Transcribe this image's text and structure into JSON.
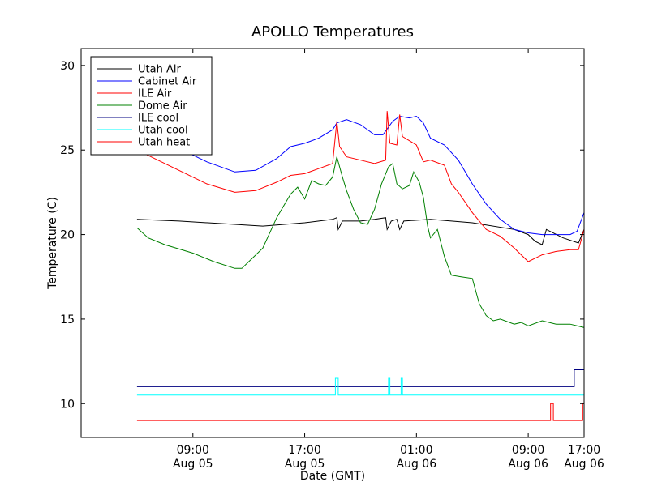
{
  "chart_data": {
    "type": "line",
    "title": "APOLLO Temperatures",
    "xlabel": "Date (GMT)",
    "ylabel": "Temperature (C)",
    "xlim": [
      -4,
      32
    ],
    "ylim": [
      8,
      31
    ],
    "x_unit": "hours since 2024-08-05 05:00 (approx)",
    "yticks": [
      10,
      15,
      20,
      25,
      30
    ],
    "xticks": [
      {
        "x": 4,
        "line1": "09:00",
        "line2": "Aug 05"
      },
      {
        "x": 12,
        "line1": "17:00",
        "line2": "Aug 05"
      },
      {
        "x": 20,
        "line1": "01:00",
        "line2": "Aug 06"
      },
      {
        "x": 28,
        "line1": "09:00",
        "line2": "Aug 06"
      },
      {
        "x": 36,
        "line1": "17:00",
        "line2": "Aug 06"
      }
    ],
    "legend_position": "top-left",
    "series": [
      {
        "name": "Utah Air",
        "color": "#000000",
        "step": false,
        "points": [
          [
            0,
            20.9
          ],
          [
            3,
            20.8
          ],
          [
            7,
            20.6
          ],
          [
            9,
            20.5
          ],
          [
            12,
            20.7
          ],
          [
            14,
            20.9
          ],
          [
            14.3,
            21.0
          ],
          [
            14.4,
            20.3
          ],
          [
            14.7,
            20.8
          ],
          [
            16,
            20.8
          ],
          [
            17,
            20.9
          ],
          [
            17.8,
            21.0
          ],
          [
            17.9,
            20.3
          ],
          [
            18.2,
            20.8
          ],
          [
            18.6,
            20.9
          ],
          [
            18.8,
            20.3
          ],
          [
            19.1,
            20.8
          ],
          [
            21,
            20.9
          ],
          [
            24,
            20.7
          ],
          [
            27,
            20.3
          ],
          [
            28,
            20.0
          ],
          [
            28.5,
            19.6
          ],
          [
            29,
            19.4
          ],
          [
            29.3,
            20.3
          ],
          [
            30.5,
            19.8
          ],
          [
            31.6,
            19.5
          ],
          [
            32,
            20.3
          ],
          [
            32.5,
            19.9
          ],
          [
            33,
            19.7
          ],
          [
            36,
            19.7
          ]
        ]
      },
      {
        "name": "Cabinet Air",
        "color": "#0000ff",
        "step": false,
        "points": [
          [
            0,
            26.6
          ],
          [
            2,
            25.5
          ],
          [
            5,
            24.3
          ],
          [
            7,
            23.7
          ],
          [
            8.5,
            23.8
          ],
          [
            10,
            24.5
          ],
          [
            11,
            25.2
          ],
          [
            12,
            25.4
          ],
          [
            13,
            25.7
          ],
          [
            14,
            26.2
          ],
          [
            14.3,
            26.6
          ],
          [
            15,
            26.8
          ],
          [
            16,
            26.5
          ],
          [
            17,
            25.9
          ],
          [
            17.6,
            25.9
          ],
          [
            18.3,
            26.7
          ],
          [
            18.8,
            27.0
          ],
          [
            19.5,
            26.9
          ],
          [
            20,
            27.0
          ],
          [
            20.5,
            26.6
          ],
          [
            21,
            25.7
          ],
          [
            22,
            25.3
          ],
          [
            23,
            24.4
          ],
          [
            24,
            23.0
          ],
          [
            25,
            21.8
          ],
          [
            26,
            20.9
          ],
          [
            27,
            20.3
          ],
          [
            28,
            20.1
          ],
          [
            29,
            20.0
          ],
          [
            30,
            20.0
          ],
          [
            31,
            20.0
          ],
          [
            31.5,
            20.2
          ],
          [
            32,
            21.3
          ],
          [
            33,
            22.2
          ],
          [
            34,
            22.7
          ],
          [
            35,
            23.8
          ],
          [
            36,
            25.0
          ]
        ]
      },
      {
        "name": "ILE Air",
        "color": "#ff0000",
        "step": false,
        "points": [
          [
            0,
            25.0
          ],
          [
            2,
            24.2
          ],
          [
            5,
            23.0
          ],
          [
            7,
            22.5
          ],
          [
            8.5,
            22.6
          ],
          [
            10,
            23.1
          ],
          [
            11,
            23.5
          ],
          [
            12,
            23.6
          ],
          [
            13,
            23.9
          ],
          [
            14,
            24.2
          ],
          [
            14.3,
            26.7
          ],
          [
            14.5,
            25.2
          ],
          [
            15,
            24.6
          ],
          [
            16,
            24.4
          ],
          [
            17,
            24.2
          ],
          [
            17.8,
            24.4
          ],
          [
            17.9,
            27.3
          ],
          [
            18.1,
            25.4
          ],
          [
            18.6,
            25.3
          ],
          [
            18.8,
            27.1
          ],
          [
            19.0,
            25.8
          ],
          [
            20,
            25.3
          ],
          [
            20.5,
            24.3
          ],
          [
            21,
            24.4
          ],
          [
            22,
            24.1
          ],
          [
            22.5,
            23.0
          ],
          [
            23,
            22.5
          ],
          [
            24,
            21.3
          ],
          [
            25,
            20.3
          ],
          [
            26,
            19.9
          ],
          [
            27,
            19.2
          ],
          [
            28,
            18.4
          ],
          [
            29,
            18.8
          ],
          [
            30,
            19.0
          ],
          [
            31,
            19.1
          ],
          [
            31.6,
            19.1
          ],
          [
            32,
            20.3
          ],
          [
            33,
            21.0
          ],
          [
            34,
            21.7
          ],
          [
            35,
            22.6
          ],
          [
            36,
            23.4
          ]
        ]
      },
      {
        "name": "Dome Air",
        "color": "#008000",
        "step": false,
        "points": [
          [
            0,
            20.4
          ],
          [
            0.8,
            19.8
          ],
          [
            2,
            19.4
          ],
          [
            4,
            18.9
          ],
          [
            5.5,
            18.4
          ],
          [
            7,
            18.0
          ],
          [
            7.5,
            18.0
          ],
          [
            8,
            18.4
          ],
          [
            9,
            19.2
          ],
          [
            10,
            21.0
          ],
          [
            11,
            22.4
          ],
          [
            11.5,
            22.8
          ],
          [
            12,
            22.1
          ],
          [
            12.5,
            23.2
          ],
          [
            13,
            23.0
          ],
          [
            13.5,
            22.9
          ],
          [
            14,
            23.4
          ],
          [
            14.3,
            24.6
          ],
          [
            14.7,
            23.4
          ],
          [
            15,
            22.6
          ],
          [
            15.5,
            21.5
          ],
          [
            16,
            20.7
          ],
          [
            16.5,
            20.6
          ],
          [
            17,
            21.5
          ],
          [
            17.5,
            23.0
          ],
          [
            18,
            24.0
          ],
          [
            18.3,
            24.2
          ],
          [
            18.6,
            23.0
          ],
          [
            19,
            22.7
          ],
          [
            19.5,
            22.9
          ],
          [
            19.8,
            23.7
          ],
          [
            20.2,
            23.1
          ],
          [
            20.5,
            22.2
          ],
          [
            20.8,
            20.5
          ],
          [
            21,
            19.8
          ],
          [
            21.5,
            20.3
          ],
          [
            22,
            18.7
          ],
          [
            22.5,
            17.6
          ],
          [
            23.2,
            17.5
          ],
          [
            24,
            17.4
          ],
          [
            24.5,
            15.9
          ],
          [
            25,
            15.2
          ],
          [
            25.5,
            14.9
          ],
          [
            26,
            15.0
          ],
          [
            27,
            14.7
          ],
          [
            27.5,
            14.8
          ],
          [
            28,
            14.6
          ],
          [
            29,
            14.9
          ],
          [
            30,
            14.7
          ],
          [
            31,
            14.7
          ],
          [
            32,
            14.5
          ],
          [
            32.5,
            14.9
          ],
          [
            33,
            15.6
          ],
          [
            34,
            17.1
          ],
          [
            35,
            19.4
          ],
          [
            36,
            20.5
          ]
        ]
      },
      {
        "name": "ILE cool",
        "color": "#000080",
        "step": true,
        "points": [
          [
            0,
            11.0
          ],
          [
            31.3,
            11.0
          ],
          [
            31.3,
            12.0
          ],
          [
            36,
            12.0
          ]
        ]
      },
      {
        "name": "Utah cool",
        "color": "#00ffff",
        "step": true,
        "points": [
          [
            0,
            10.5
          ],
          [
            14.2,
            10.5
          ],
          [
            14.2,
            11.5
          ],
          [
            14.4,
            11.5
          ],
          [
            14.4,
            10.5
          ],
          [
            18.0,
            10.5
          ],
          [
            18.0,
            11.5
          ],
          [
            18.1,
            11.5
          ],
          [
            18.1,
            10.5
          ],
          [
            18.9,
            10.5
          ],
          [
            18.9,
            11.5
          ],
          [
            19.0,
            11.5
          ],
          [
            19.0,
            10.5
          ],
          [
            36,
            10.5
          ]
        ]
      },
      {
        "name": "Utah heat",
        "color": "#ff0000",
        "step": true,
        "points": [
          [
            0,
            9.0
          ],
          [
            29.6,
            9.0
          ],
          [
            29.6,
            10.0
          ],
          [
            29.8,
            10.0
          ],
          [
            29.8,
            9.0
          ],
          [
            31.9,
            9.0
          ],
          [
            31.9,
            10.0
          ],
          [
            32.1,
            10.0
          ],
          [
            32.1,
            9.0
          ],
          [
            36,
            9.0
          ]
        ]
      }
    ]
  }
}
